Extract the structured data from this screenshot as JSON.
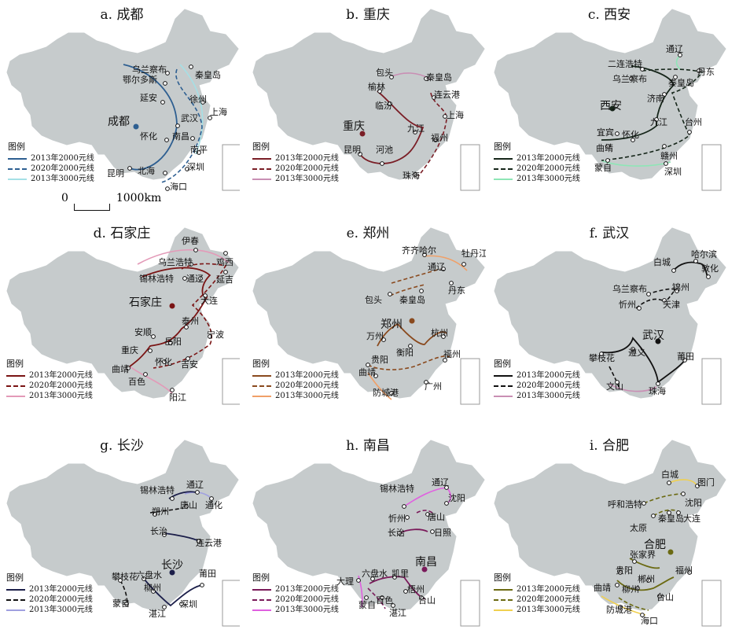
{
  "colors": {
    "land": "#c6cbcc",
    "inset_border": "#9a9a9a"
  },
  "legend_title": "图例",
  "scale": {
    "zero": "0",
    "end": "1000km"
  },
  "panels": [
    {
      "id": "a",
      "title": "a. 成都",
      "center": "成都",
      "color": "#2e5f91",
      "c3000": "#a5e0e6",
      "legend": [
        "2013年2000元线",
        "2020年2000元线",
        "2013年3000元线"
      ],
      "cities": [
        "乌兰察布",
        "鄂尔多斯",
        "秦皇岛",
        "延安",
        "徐州",
        "上海",
        "武汉",
        "怀化",
        "南昌",
        "南平",
        "昆明",
        "深圳",
        "北海",
        "海口"
      ]
    },
    {
      "id": "b",
      "title": "b. 重庆",
      "center": "重庆",
      "color": "#7a1e26",
      "c3000": "#c98fb4",
      "legend": [
        "2013年2000元线",
        "2020年2000元线",
        "2013年3000元线"
      ],
      "cities": [
        "包头",
        "秦皇岛",
        "榆林",
        "连云港",
        "临汾",
        "上海",
        "九江",
        "福州",
        "昆明",
        "河池",
        "珠海"
      ]
    },
    {
      "id": "c",
      "title": "c. 西安",
      "center": "西安",
      "color": "#16261a",
      "c3000": "#8ee6b6",
      "legend": [
        "2013年2000元线",
        "2020年2000元线",
        "2013年3000元线"
      ],
      "cities": [
        "通辽",
        "二连浩特",
        "丹东",
        "乌兰察布",
        "秦皇岛",
        "济南",
        "九江",
        "台州",
        "宜宾",
        "怀化",
        "曲靖",
        "赣州",
        "蒙自",
        "深圳"
      ]
    },
    {
      "id": "d",
      "title": "d. 石家庄",
      "center": "石家庄",
      "color": "#7a1414",
      "c3000": "#e39ab8",
      "legend": [
        "2013年2000元线",
        "2020年2000元线",
        "2013年3000元线"
      ],
      "cities": [
        "伊春",
        "乌兰浩特",
        "鸡西",
        "锡林浩特",
        "通辽",
        "延吉",
        "大连",
        "泰州",
        "安顺",
        "宁波",
        "岳阳",
        "重庆",
        "怀化",
        "吉安",
        "曲靖",
        "百色",
        "阳江"
      ]
    },
    {
      "id": "e",
      "title": "e. 郑州",
      "center": "郑州",
      "color": "#8a4a1e",
      "c3000": "#f0a068",
      "legend": [
        "2013年2000元线",
        "2020年2000元线",
        "2013年3000元线"
      ],
      "cities": [
        "齐齐哈尔",
        "牡丹江",
        "通辽",
        "丹东",
        "包头",
        "秦皇岛",
        "万州",
        "杭州",
        "衡阳",
        "贵阳",
        "福州",
        "曲靖",
        "广州",
        "防城港"
      ]
    },
    {
      "id": "f",
      "title": "f. 武汉",
      "center": "武汉",
      "color": "#111111",
      "c3000": "#c98fb4",
      "legend": [
        "2013年2000元线",
        "2020年2000元线",
        "2013年3000元线"
      ],
      "cities": [
        "白城",
        "哈尔滨",
        "敦化",
        "锦州",
        "乌兰察布",
        "忻州",
        "天津",
        "遵义",
        "莆田",
        "攀枝花",
        "文山",
        "珠海"
      ]
    },
    {
      "id": "g",
      "title": "g. 长沙",
      "center": "长沙",
      "color": "#1c1f4a",
      "c3000": "#a0a0e0",
      "legend": [
        "2013年2000元线",
        "2020年2000元线",
        "2013年3000元线"
      ],
      "cities": [
        "通辽",
        "锡林浩特",
        "通化",
        "唐山",
        "朔州",
        "长治",
        "连云港",
        "攀枝花",
        "六盘水",
        "莆田",
        "柳州",
        "蒙自",
        "湛江",
        "深圳"
      ]
    },
    {
      "id": "h",
      "title": "h. 南昌",
      "center": "南昌",
      "color": "#7a1a5a",
      "c3000": "#e060e0",
      "legend": [
        "2013年2000元线",
        "2020年2000元线",
        "2013年3000元线"
      ],
      "cities": [
        "通辽",
        "锡林浩特",
        "沈阳",
        "唐山",
        "忻州",
        "长治",
        "日照",
        "六盘水",
        "凯里",
        "大理",
        "梧州",
        "蒙自",
        "百色",
        "台山",
        "湛江"
      ]
    },
    {
      "id": "i",
      "title": "i. 合肥",
      "center": "合肥",
      "color": "#6b6a12",
      "c3000": "#f0d050",
      "legend": [
        "2013年2000元线",
        "2020年2000元线",
        "2013年3000元线"
      ],
      "cities": [
        "白城",
        "图门",
        "呼和浩特",
        "沈阳",
        "太原",
        "秦皇岛",
        "大连",
        "张家界",
        "贵阳",
        "福州",
        "曲靖",
        "郴州",
        "柳州",
        "台山",
        "防城港",
        "海口"
      ]
    }
  ]
}
